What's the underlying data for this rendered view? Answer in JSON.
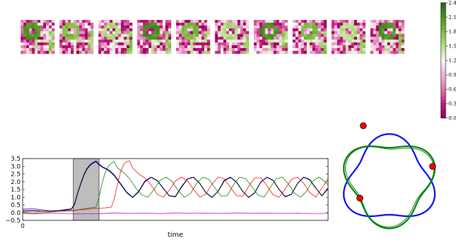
{
  "chart_data": [
    {
      "type": "heatmap",
      "panel": "snapshot-row",
      "frame_count": 10,
      "grid_cells": [
        12,
        12
      ],
      "colormap": {
        "low": "#8e0152",
        "mid": "#f7f7f7",
        "high": "#276419",
        "stops": [
          "#8e0152",
          "#c51b7d",
          "#de77ae",
          "#f1b6da",
          "#f7f7f7",
          "#b8e186",
          "#7fbc41",
          "#4d9221",
          "#276419"
        ]
      },
      "vmin": 0.0,
      "vmax": 2.4,
      "colorbar_ticks": [
        "0.0",
        "0.3",
        "0.6",
        "0.9",
        "1.2",
        "1.5",
        "1.8",
        "2.1",
        "2.4"
      ]
    },
    {
      "type": "line",
      "panel": "time-series",
      "xlabel": "time",
      "xlim": [
        0,
        100
      ],
      "ylim": [
        -0.5,
        3.5
      ],
      "x_ticks": [
        "0"
      ],
      "y_ticks": [
        "3.5",
        "3.0",
        "2.5",
        "2.0",
        "1.5",
        "1.0",
        "0.5",
        "0.0",
        "−0.5"
      ],
      "shaded_region": {
        "x0": 16.6,
        "x1": 25.0,
        "color": "#bdbdbd"
      },
      "grid": false,
      "series": [
        {
          "color": "#0000ff",
          "values": [
            [
              0,
              0.22
            ],
            [
              3,
              0.26
            ],
            [
              6,
              0.18
            ],
            [
              9,
              0.12
            ],
            [
              12,
              0.15
            ],
            [
              16,
              0.25
            ],
            [
              17,
              0.6
            ],
            [
              18,
              1.3
            ],
            [
              19,
              1.9
            ],
            [
              20,
              2.45
            ],
            [
              21,
              2.85
            ],
            [
              22,
              3.1
            ],
            [
              23,
              3.25
            ],
            [
              24,
              3.35
            ],
            [
              25,
              3.15
            ],
            [
              26,
              3.0
            ],
            [
              28,
              2.8
            ],
            [
              30,
              2.45
            ],
            [
              32,
              1.9
            ],
            [
              34,
              1.35
            ],
            [
              36,
              1.0
            ],
            [
              38,
              1.4
            ],
            [
              40,
              2.05
            ],
            [
              42,
              2.3
            ],
            [
              44,
              2.1
            ],
            [
              46,
              1.6
            ],
            [
              48,
              1.1
            ],
            [
              50,
              1.05
            ],
            [
              52,
              1.7
            ],
            [
              54,
              2.2
            ],
            [
              56,
              2.3
            ],
            [
              58,
              1.9
            ],
            [
              60,
              1.3
            ],
            [
              62,
              1.0
            ],
            [
              64,
              1.4
            ],
            [
              66,
              2.1
            ],
            [
              68,
              2.3
            ],
            [
              70,
              2.0
            ],
            [
              72,
              1.4
            ],
            [
              74,
              1.0
            ],
            [
              76,
              1.3
            ],
            [
              78,
              2.0
            ],
            [
              80,
              2.3
            ],
            [
              82,
              2.1
            ],
            [
              84,
              1.5
            ],
            [
              86,
              1.05
            ],
            [
              88,
              1.2
            ],
            [
              90,
              1.9
            ],
            [
              92,
              2.3
            ],
            [
              94,
              2.15
            ],
            [
              96,
              1.6
            ],
            [
              98,
              1.1
            ],
            [
              100,
              1.6
            ]
          ]
        },
        {
          "color": "#000000",
          "values": [
            [
              0,
              0.12
            ],
            [
              3,
              0.15
            ],
            [
              6,
              0.1
            ],
            [
              9,
              0.08
            ],
            [
              12,
              0.12
            ],
            [
              16,
              0.22
            ],
            [
              17,
              0.55
            ],
            [
              18,
              1.25
            ],
            [
              19,
              1.85
            ],
            [
              20,
              2.4
            ],
            [
              21,
              2.8
            ],
            [
              22,
              3.05
            ],
            [
              23,
              3.2
            ],
            [
              24,
              3.3
            ],
            [
              25,
              3.1
            ],
            [
              26,
              2.95
            ],
            [
              28,
              2.75
            ],
            [
              30,
              2.4
            ],
            [
              32,
              1.85
            ],
            [
              34,
              1.3
            ],
            [
              36,
              0.98
            ],
            [
              38,
              1.35
            ],
            [
              40,
              2.0
            ],
            [
              42,
              2.28
            ],
            [
              44,
              2.08
            ],
            [
              46,
              1.58
            ],
            [
              48,
              1.08
            ],
            [
              50,
              1.02
            ],
            [
              52,
              1.65
            ],
            [
              54,
              2.18
            ],
            [
              56,
              2.28
            ],
            [
              58,
              1.88
            ],
            [
              60,
              1.28
            ],
            [
              62,
              0.98
            ],
            [
              64,
              1.38
            ],
            [
              66,
              2.05
            ],
            [
              68,
              2.28
            ],
            [
              70,
              1.98
            ],
            [
              72,
              1.38
            ],
            [
              74,
              0.98
            ],
            [
              76,
              1.28
            ],
            [
              78,
              1.98
            ],
            [
              80,
              2.28
            ],
            [
              82,
              2.08
            ],
            [
              84,
              1.48
            ],
            [
              86,
              1.02
            ],
            [
              88,
              1.18
            ],
            [
              90,
              1.88
            ],
            [
              92,
              2.28
            ],
            [
              94,
              2.12
            ],
            [
              96,
              1.58
            ],
            [
              98,
              1.08
            ],
            [
              100,
              1.55
            ]
          ]
        },
        {
          "color": "#008000",
          "values": [
            [
              0,
              0.0
            ],
            [
              4,
              -0.03
            ],
            [
              8,
              0.02
            ],
            [
              12,
              0.08
            ],
            [
              16,
              0.1
            ],
            [
              20,
              0.25
            ],
            [
              24,
              0.35
            ],
            [
              25,
              1.0
            ],
            [
              26,
              1.9
            ],
            [
              27,
              2.6
            ],
            [
              28,
              3.0
            ],
            [
              29,
              3.2
            ],
            [
              30,
              3.3
            ],
            [
              31,
              2.9
            ],
            [
              33,
              2.6
            ],
            [
              35,
              2.2
            ],
            [
              37,
              1.6
            ],
            [
              39,
              1.15
            ],
            [
              41,
              1.0
            ],
            [
              43,
              1.5
            ],
            [
              45,
              2.1
            ],
            [
              47,
              2.3
            ],
            [
              49,
              2.0
            ],
            [
              51,
              1.4
            ],
            [
              53,
              1.0
            ],
            [
              55,
              1.25
            ],
            [
              57,
              1.9
            ],
            [
              59,
              2.3
            ],
            [
              61,
              2.15
            ],
            [
              63,
              1.6
            ],
            [
              65,
              1.05
            ],
            [
              67,
              1.1
            ],
            [
              69,
              1.8
            ],
            [
              71,
              2.3
            ],
            [
              73,
              2.2
            ],
            [
              75,
              1.7
            ],
            [
              77,
              1.15
            ],
            [
              79,
              1.0
            ],
            [
              81,
              1.6
            ],
            [
              83,
              2.2
            ],
            [
              85,
              2.3
            ],
            [
              87,
              1.85
            ],
            [
              89,
              1.25
            ],
            [
              91,
              1.0
            ],
            [
              93,
              1.4
            ],
            [
              95,
              2.05
            ],
            [
              97,
              2.3
            ],
            [
              99,
              2.0
            ],
            [
              100,
              1.8
            ]
          ]
        },
        {
          "color": "#ff0000",
          "values": [
            [
              0,
              0.05
            ],
            [
              4,
              0.06
            ],
            [
              8,
              0.1
            ],
            [
              12,
              0.12
            ],
            [
              16,
              0.15
            ],
            [
              20,
              0.2
            ],
            [
              24,
              0.28
            ],
            [
              27,
              0.3
            ],
            [
              29,
              0.35
            ],
            [
              30,
              0.9
            ],
            [
              31,
              1.8
            ],
            [
              32,
              2.6
            ],
            [
              33,
              3.1
            ],
            [
              34,
              3.3
            ],
            [
              35,
              3.35
            ],
            [
              36,
              2.9
            ],
            [
              38,
              2.5
            ],
            [
              40,
              2.25
            ],
            [
              42,
              1.8
            ],
            [
              44,
              1.2
            ],
            [
              46,
              1.0
            ],
            [
              48,
              1.45
            ],
            [
              50,
              2.05
            ],
            [
              52,
              2.3
            ],
            [
              54,
              2.05
            ],
            [
              56,
              1.5
            ],
            [
              58,
              1.0
            ],
            [
              60,
              1.2
            ],
            [
              62,
              1.85
            ],
            [
              64,
              2.3
            ],
            [
              66,
              2.2
            ],
            [
              68,
              1.65
            ],
            [
              70,
              1.1
            ],
            [
              72,
              1.05
            ],
            [
              74,
              1.7
            ],
            [
              76,
              2.25
            ],
            [
              78,
              2.25
            ],
            [
              80,
              1.75
            ],
            [
              82,
              1.15
            ],
            [
              84,
              1.0
            ],
            [
              86,
              1.55
            ],
            [
              88,
              2.15
            ],
            [
              90,
              2.3
            ],
            [
              92,
              1.9
            ],
            [
              94,
              1.3
            ],
            [
              96,
              1.0
            ],
            [
              98,
              1.6
            ],
            [
              100,
              2.2
            ]
          ]
        },
        {
          "color": "#c000c0",
          "values": [
            [
              0,
              -0.05
            ],
            [
              5,
              -0.08
            ],
            [
              10,
              -0.04
            ],
            [
              15,
              -0.06
            ],
            [
              20,
              -0.08
            ],
            [
              25,
              -0.07
            ],
            [
              30,
              -0.02
            ],
            [
              35,
              -0.05
            ],
            [
              40,
              -0.03
            ],
            [
              45,
              -0.06
            ],
            [
              50,
              -0.02
            ],
            [
              55,
              -0.04
            ],
            [
              60,
              -0.03
            ],
            [
              65,
              -0.05
            ],
            [
              70,
              -0.02
            ],
            [
              75,
              -0.04
            ],
            [
              80,
              -0.03
            ],
            [
              85,
              -0.05
            ],
            [
              90,
              -0.04
            ],
            [
              95,
              -0.06
            ],
            [
              100,
              -0.05
            ]
          ]
        }
      ]
    },
    {
      "type": "line",
      "panel": "phase-portrait",
      "series": [
        {
          "color": "#0000ff",
          "shape": "triangle",
          "rotation": 0
        },
        {
          "color": "#008000",
          "shape": "triangle",
          "rotation": 180
        }
      ],
      "markers": {
        "color": "#ff0000",
        "count": 3
      }
    }
  ]
}
